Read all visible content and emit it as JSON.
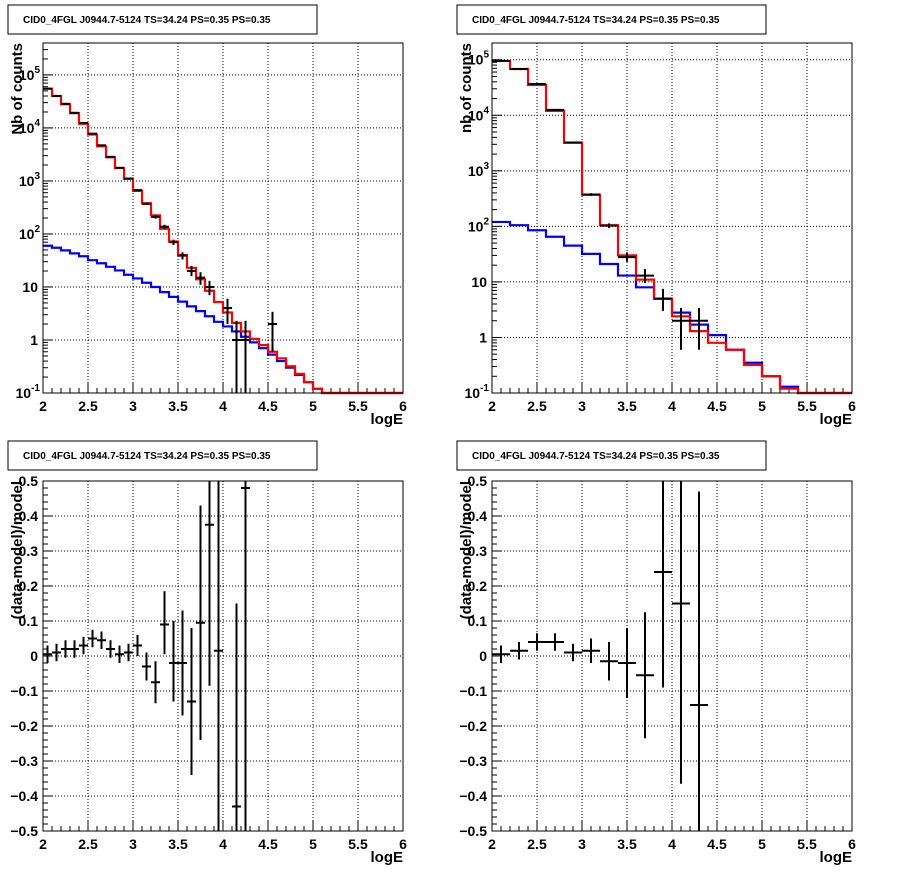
{
  "chart_data": [
    {
      "type": "line",
      "panel": "top-left",
      "title": "CID0_4FGL J0944.7-5124 TS=34.24 PS=0.35 PS=0.35",
      "xlabel": "logE",
      "ylabel": "Nb of counts",
      "xlim": [
        2,
        6
      ],
      "ylim": [
        0.1,
        400000
      ],
      "y_scale": "log",
      "grid": true,
      "x_ticks": [
        "2",
        "2.5",
        "3",
        "3.5",
        "4",
        "4.5",
        "5",
        "5.5",
        "6"
      ],
      "y_ticks": [
        {
          "value": 0.1,
          "base": "10",
          "exp": "-1"
        },
        {
          "value": 1,
          "label": "1"
        },
        {
          "value": 10,
          "label": "10"
        },
        {
          "value": 100,
          "base": "10",
          "exp": "2"
        },
        {
          "value": 1000,
          "base": "10",
          "exp": "3"
        },
        {
          "value": 10000,
          "base": "10",
          "exp": "4"
        },
        {
          "value": 100000,
          "base": "10",
          "exp": "5"
        }
      ],
      "bin_edges": [
        2.0,
        2.1,
        2.2,
        2.3,
        2.4,
        2.5,
        2.6,
        2.7,
        2.8,
        2.9,
        3.0,
        3.1,
        3.2,
        3.3,
        3.4,
        3.5,
        3.6,
        3.7,
        3.8,
        3.9,
        4.0,
        4.1,
        4.2,
        4.3,
        4.4,
        4.5,
        4.6,
        4.7,
        4.8,
        4.9,
        5.0,
        5.1,
        5.2,
        5.3,
        5.4,
        5.5,
        5.6,
        5.7,
        5.8,
        5.9,
        6.0
      ],
      "series": [
        {
          "style": "histogram",
          "color": "#0000ff",
          "values": [
            60,
            55,
            49,
            43,
            38,
            32,
            28,
            24,
            20.5,
            17,
            14.5,
            12,
            10,
            8,
            6.5,
            5.3,
            4.3,
            3.5,
            2.8,
            2.2,
            1.8,
            1.45,
            1.15,
            0.9,
            0.7,
            0.53,
            0.4,
            0.3,
            0.22,
            0.16,
            0.12,
            0.1,
            0.1,
            0.1,
            0.1,
            0.1,
            0.1,
            0.1,
            0.1,
            0.1
          ]
        },
        {
          "style": "histogram",
          "color": "#ff0000",
          "values": [
            55000,
            40000,
            28000,
            19000,
            12000,
            7500,
            4500,
            2800,
            1750,
            1100,
            650,
            380,
            225,
            125,
            72,
            40,
            23,
            14,
            8.5,
            5.2,
            3.3,
            2.1,
            1.45,
            1.05,
            0.8,
            0.6,
            0.45,
            0.32,
            0.23,
            0.16,
            0.12,
            0.1,
            0.1,
            0.1,
            0.1,
            0.1,
            0.1,
            0.1,
            0.1,
            0.1
          ]
        },
        {
          "style": "errorbar",
          "color": "#000000",
          "points": [
            {
              "x": 2.05,
              "y": 55000,
              "ylo": 54500,
              "yhi": 55500
            },
            {
              "x": 2.15,
              "y": 40000,
              "ylo": 39600,
              "yhi": 40400
            },
            {
              "x": 2.25,
              "y": 28500,
              "ylo": 28200,
              "yhi": 28800
            },
            {
              "x": 2.35,
              "y": 19300,
              "ylo": 19000,
              "yhi": 19600
            },
            {
              "x": 2.45,
              "y": 12400,
              "ylo": 12200,
              "yhi": 12600
            },
            {
              "x": 2.55,
              "y": 7800,
              "ylo": 7700,
              "yhi": 7900
            },
            {
              "x": 2.65,
              "y": 4700,
              "ylo": 4630,
              "yhi": 4770
            },
            {
              "x": 2.75,
              "y": 2850,
              "ylo": 2800,
              "yhi": 2900
            },
            {
              "x": 2.85,
              "y": 1770,
              "ylo": 1730,
              "yhi": 1810
            },
            {
              "x": 2.95,
              "y": 1110,
              "ylo": 1080,
              "yhi": 1140
            },
            {
              "x": 3.05,
              "y": 670,
              "ylo": 645,
              "yhi": 695
            },
            {
              "x": 3.15,
              "y": 370,
              "ylo": 350,
              "yhi": 390
            },
            {
              "x": 3.25,
              "y": 210,
              "ylo": 195,
              "yhi": 225
            },
            {
              "x": 3.35,
              "y": 137,
              "ylo": 125,
              "yhi": 149
            },
            {
              "x": 3.45,
              "y": 70,
              "ylo": 62,
              "yhi": 78
            },
            {
              "x": 3.55,
              "y": 39,
              "ylo": 33,
              "yhi": 45
            },
            {
              "x": 3.65,
              "y": 20,
              "ylo": 16,
              "yhi": 25
            },
            {
              "x": 3.75,
              "y": 15,
              "ylo": 11,
              "yhi": 19
            },
            {
              "x": 3.85,
              "y": 10,
              "ylo": 7,
              "yhi": 13
            },
            {
              "x": 4.05,
              "y": 4,
              "ylo": 2,
              "yhi": 6
            },
            {
              "x": 4.15,
              "y": 1,
              "ylo": 0.1,
              "yhi": 2.3
            },
            {
              "x": 4.25,
              "y": 1,
              "ylo": 0.1,
              "yhi": 2.3
            },
            {
              "x": 4.55,
              "y": 2,
              "ylo": 0.6,
              "yhi": 3.4
            }
          ]
        }
      ]
    },
    {
      "type": "line",
      "panel": "top-right",
      "title": "CID0_4FGL J0944.7-5124 TS=34.24 PS=0.35 PS=0.35",
      "xlabel": "logE",
      "ylabel": "nb of counts",
      "xlim": [
        2,
        6
      ],
      "ylim": [
        0.1,
        200000
      ],
      "y_scale": "log",
      "grid": true,
      "x_ticks": [
        "2",
        "2.5",
        "3",
        "3.5",
        "4",
        "4.5",
        "5",
        "5.5",
        "6"
      ],
      "y_ticks": [
        {
          "value": 0.1,
          "base": "10",
          "exp": "-1"
        },
        {
          "value": 1,
          "label": "1"
        },
        {
          "value": 10,
          "label": "10"
        },
        {
          "value": 100,
          "base": "10",
          "exp": "2"
        },
        {
          "value": 1000,
          "base": "10",
          "exp": "3"
        },
        {
          "value": 10000,
          "base": "10",
          "exp": "4"
        },
        {
          "value": 100000,
          "base": "10",
          "exp": "5"
        }
      ],
      "bin_edges": [
        2.0,
        2.2,
        2.4,
        2.6,
        2.8,
        3.0,
        3.2,
        3.4,
        3.6,
        3.8,
        4.0,
        4.2,
        4.4,
        4.6,
        4.8,
        5.0,
        5.2,
        5.4,
        5.6,
        5.8,
        6.0
      ],
      "series": [
        {
          "style": "histogram",
          "color": "#0000ff",
          "values": [
            120,
            105,
            85,
            65,
            45,
            32,
            21,
            13,
            8,
            5,
            2.8,
            1.7,
            1.1,
            0.6,
            0.35,
            0.2,
            0.13,
            0.1,
            0.1,
            0.1
          ]
        },
        {
          "style": "histogram",
          "color": "#ff0000",
          "values": [
            95000,
            68000,
            35000,
            12000,
            3200,
            370,
            105,
            30,
            11,
            5,
            2.4,
            1.3,
            0.8,
            0.6,
            0.32,
            0.2,
            0.12,
            0.1,
            0.1,
            0.1
          ]
        },
        {
          "style": "errorbar",
          "color": "#000000",
          "points": [
            {
              "x": 2.1,
              "y": 95000,
              "ylo": 94500,
              "yhi": 95500
            },
            {
              "x": 2.3,
              "y": 68000,
              "ylo": 67600,
              "yhi": 68400
            },
            {
              "x": 2.5,
              "y": 36500,
              "ylo": 36200,
              "yhi": 36800
            },
            {
              "x": 2.7,
              "y": 12500,
              "ylo": 12300,
              "yhi": 12700
            },
            {
              "x": 2.9,
              "y": 3230,
              "ylo": 3180,
              "yhi": 3280
            },
            {
              "x": 3.1,
              "y": 375,
              "ylo": 355,
              "yhi": 395
            },
            {
              "x": 3.3,
              "y": 103,
              "ylo": 93,
              "yhi": 113
            },
            {
              "x": 3.5,
              "y": 28,
              "ylo": 23,
              "yhi": 34
            },
            {
              "x": 3.7,
              "y": 13,
              "ylo": 9.5,
              "yhi": 17
            },
            {
              "x": 3.9,
              "y": 5,
              "ylo": 3,
              "yhi": 7.5
            },
            {
              "x": 4.1,
              "y": 2,
              "ylo": 0.6,
              "yhi": 3.4
            },
            {
              "x": 4.3,
              "y": 2,
              "ylo": 0.6,
              "yhi": 3.4
            }
          ]
        }
      ]
    },
    {
      "type": "scatter",
      "panel": "bottom-left",
      "title": "CID0_4FGL J0944.7-5124 TS=34.24 PS=0.35 PS=0.35",
      "xlabel": "logE",
      "ylabel": "(data-model)/model",
      "xlim": [
        2,
        6
      ],
      "ylim": [
        -0.5,
        0.5
      ],
      "y_scale": "linear",
      "grid": true,
      "x_ticks": [
        "2",
        "2.5",
        "3",
        "3.5",
        "4",
        "4.5",
        "5",
        "5.5",
        "6"
      ],
      "y_ticks": [
        {
          "value": -0.5,
          "label": "−0.5"
        },
        {
          "value": -0.4,
          "label": "−0.4"
        },
        {
          "value": -0.3,
          "label": "−0.3"
        },
        {
          "value": -0.2,
          "label": "−0.2"
        },
        {
          "value": -0.1,
          "label": "−0.1"
        },
        {
          "value": 0,
          "label": "0"
        },
        {
          "value": 0.1,
          "label": "0.1"
        },
        {
          "value": 0.2,
          "label": "0.2"
        },
        {
          "value": 0.3,
          "label": "0.3"
        },
        {
          "value": 0.4,
          "label": "0.4"
        },
        {
          "value": 0.5,
          "label": "0.5"
        }
      ],
      "series": [
        {
          "style": "errorbar",
          "color": "#000000",
          "xerr": 0.05,
          "points": [
            {
              "x": 2.05,
              "y": 0.005,
              "ylo": -0.02,
              "yhi": 0.03
            },
            {
              "x": 2.15,
              "y": 0.01,
              "ylo": -0.015,
              "yhi": 0.035
            },
            {
              "x": 2.25,
              "y": 0.02,
              "ylo": -0.005,
              "yhi": 0.045
            },
            {
              "x": 2.35,
              "y": 0.02,
              "ylo": -0.005,
              "yhi": 0.045
            },
            {
              "x": 2.45,
              "y": 0.03,
              "ylo": 0.005,
              "yhi": 0.055
            },
            {
              "x": 2.55,
              "y": 0.05,
              "ylo": 0.025,
              "yhi": 0.075
            },
            {
              "x": 2.65,
              "y": 0.045,
              "ylo": 0.02,
              "yhi": 0.07
            },
            {
              "x": 2.75,
              "y": 0.02,
              "ylo": -0.005,
              "yhi": 0.045
            },
            {
              "x": 2.85,
              "y": 0.005,
              "ylo": -0.02,
              "yhi": 0.03
            },
            {
              "x": 2.95,
              "y": 0.01,
              "ylo": -0.015,
              "yhi": 0.035
            },
            {
              "x": 3.05,
              "y": 0.03,
              "ylo": 0.0,
              "yhi": 0.06
            },
            {
              "x": 3.15,
              "y": -0.03,
              "ylo": -0.07,
              "yhi": 0.01
            },
            {
              "x": 3.25,
              "y": -0.075,
              "ylo": -0.135,
              "yhi": -0.015
            },
            {
              "x": 3.35,
              "y": 0.09,
              "ylo": 0.005,
              "yhi": 0.185
            },
            {
              "x": 3.45,
              "y": -0.02,
              "ylo": -0.13,
              "yhi": 0.1
            },
            {
              "x": 3.55,
              "y": -0.02,
              "ylo": -0.17,
              "yhi": 0.13
            },
            {
              "x": 3.65,
              "y": -0.13,
              "ylo": -0.34,
              "yhi": 0.08
            },
            {
              "x": 3.75,
              "y": 0.095,
              "ylo": -0.24,
              "yhi": 0.43
            },
            {
              "x": 3.85,
              "y": 0.375,
              "ylo": -0.085,
              "yhi": 0.5
            },
            {
              "x": 3.95,
              "y": 0.015,
              "ylo": -0.5,
              "yhi": 0.5
            },
            {
              "x": 4.15,
              "y": -0.43,
              "ylo": -0.5,
              "yhi": 0.15
            },
            {
              "x": 4.25,
              "y": 0.48,
              "ylo": -0.5,
              "yhi": 0.5
            }
          ]
        }
      ]
    },
    {
      "type": "scatter",
      "panel": "bottom-right",
      "title": "CID0_4FGL J0944.7-5124 TS=34.24 PS=0.35 PS=0.35",
      "xlabel": "logE",
      "ylabel": "(data-model)/model",
      "xlim": [
        2,
        6
      ],
      "ylim": [
        -0.5,
        0.5
      ],
      "y_scale": "linear",
      "grid": true,
      "x_ticks": [
        "2",
        "2.5",
        "3",
        "3.5",
        "4",
        "4.5",
        "5",
        "5.5",
        "6"
      ],
      "y_ticks": [
        {
          "value": -0.5,
          "label": "−0.5"
        },
        {
          "value": -0.4,
          "label": "−0.4"
        },
        {
          "value": -0.3,
          "label": "−0.3"
        },
        {
          "value": -0.2,
          "label": "−0.2"
        },
        {
          "value": -0.1,
          "label": "−0.1"
        },
        {
          "value": 0,
          "label": "0"
        },
        {
          "value": 0.1,
          "label": "0.1"
        },
        {
          "value": 0.2,
          "label": "0.2"
        },
        {
          "value": 0.3,
          "label": "0.3"
        },
        {
          "value": 0.4,
          "label": "0.4"
        },
        {
          "value": 0.5,
          "label": "0.5"
        }
      ],
      "series": [
        {
          "style": "errorbar",
          "color": "#000000",
          "xerr": 0.1,
          "points": [
            {
              "x": 2.1,
              "y": 0.005,
              "ylo": -0.02,
              "yhi": 0.03
            },
            {
              "x": 2.3,
              "y": 0.015,
              "ylo": -0.01,
              "yhi": 0.04
            },
            {
              "x": 2.5,
              "y": 0.04,
              "ylo": 0.015,
              "yhi": 0.065
            },
            {
              "x": 2.7,
              "y": 0.04,
              "ylo": 0.015,
              "yhi": 0.065
            },
            {
              "x": 2.9,
              "y": 0.01,
              "ylo": -0.015,
              "yhi": 0.035
            },
            {
              "x": 3.1,
              "y": 0.015,
              "ylo": -0.02,
              "yhi": 0.05
            },
            {
              "x": 3.3,
              "y": -0.015,
              "ylo": -0.07,
              "yhi": 0.04
            },
            {
              "x": 3.5,
              "y": -0.02,
              "ylo": -0.12,
              "yhi": 0.08
            },
            {
              "x": 3.7,
              "y": -0.055,
              "ylo": -0.235,
              "yhi": 0.125
            },
            {
              "x": 3.9,
              "y": 0.24,
              "ylo": -0.09,
              "yhi": 0.5
            },
            {
              "x": 4.1,
              "y": 0.15,
              "ylo": -0.365,
              "yhi": 0.5
            },
            {
              "x": 4.3,
              "y": -0.14,
              "ylo": -0.5,
              "yhi": 0.47
            }
          ]
        }
      ]
    }
  ]
}
